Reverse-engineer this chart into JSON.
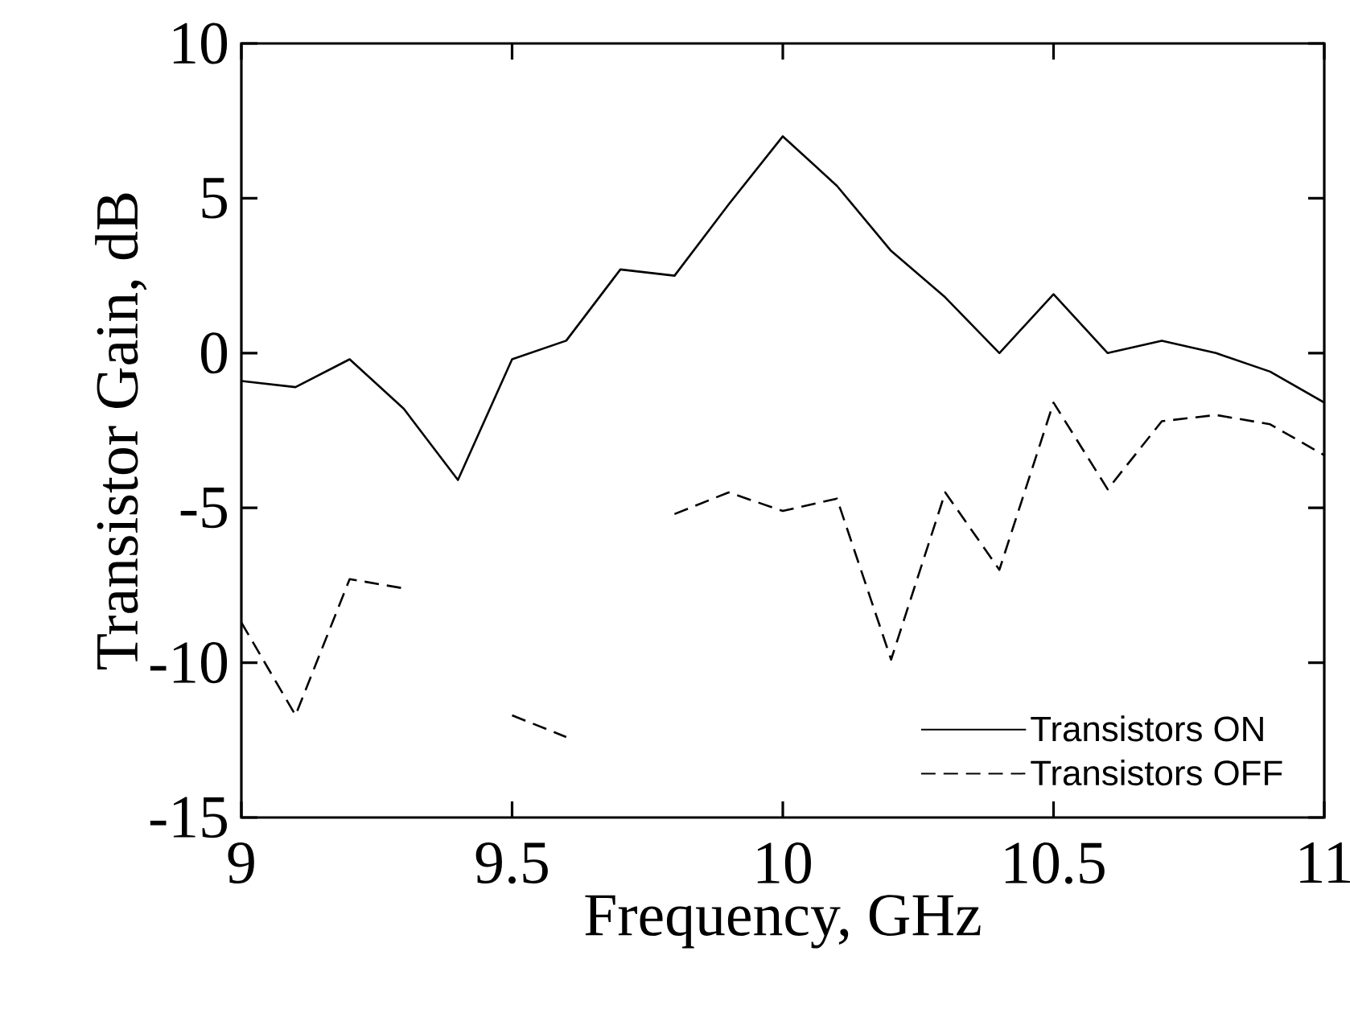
{
  "chart_data": {
    "type": "line",
    "xlabel": "Frequency, GHz",
    "ylabel": "Transistor Gain, dB",
    "x": [
      9.0,
      9.1,
      9.2,
      9.3,
      9.4,
      9.5,
      9.6,
      9.7,
      9.8,
      9.9,
      10.0,
      10.1,
      10.2,
      10.3,
      10.4,
      10.5,
      10.6,
      10.7,
      10.8,
      10.9,
      11.0
    ],
    "series": [
      {
        "name": "Transistors ON",
        "color": "#000000",
        "line_style": "solid",
        "values": [
          -0.9,
          -1.1,
          -0.2,
          -1.8,
          -4.1,
          -0.2,
          0.4,
          2.7,
          2.5,
          4.8,
          7.0,
          5.4,
          3.3,
          1.8,
          0.0,
          1.9,
          0.0,
          0.4,
          0.0,
          -0.6,
          -1.6
        ]
      },
      {
        "name": "Transistors OFF",
        "color": "#000000",
        "line_style": "dashed",
        "values": [
          -8.7,
          -11.7,
          -7.3,
          -7.6,
          null,
          -11.7,
          -12.4,
          null,
          -5.2,
          -4.5,
          -5.1,
          -4.7,
          -9.9,
          -4.5,
          -7.0,
          -1.6,
          -4.4,
          -2.2,
          -2.0,
          -2.3,
          -3.3
        ]
      }
    ],
    "xlim": [
      9,
      11
    ],
    "ylim": [
      -15,
      10
    ],
    "xticks": [
      9,
      9.5,
      10,
      10.5,
      11
    ],
    "yticks": [
      -15,
      -10,
      -5,
      0,
      5,
      10
    ],
    "legend": "bottom right",
    "grid": false,
    "marker": "none"
  }
}
